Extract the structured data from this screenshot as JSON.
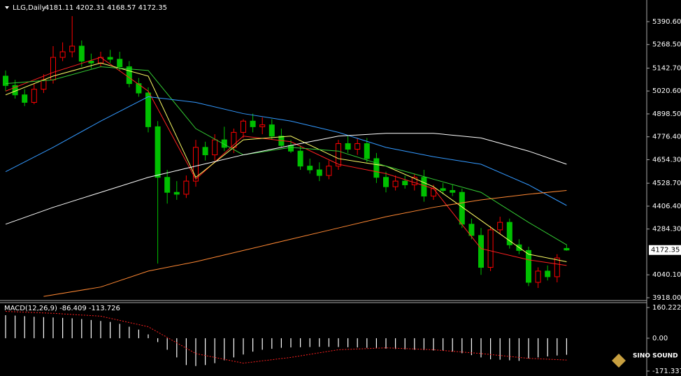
{
  "chart_data": {
    "type": "candlestick",
    "title": "LLG,Daily",
    "ohlc_text": "4181.11 4202.31 4168.57 4172.35",
    "up_color": "#ff0000",
    "down_color": "#00c000",
    "open": [
      5100,
      5050,
      5000,
      4960,
      5030,
      5080,
      5200,
      5230,
      5260,
      5180,
      5170,
      5200,
      5190,
      5150,
      5060,
      5010,
      4830,
      4560,
      4480,
      4470,
      4540,
      4720,
      4680,
      4760,
      4720,
      4800,
      4860,
      4830,
      4840,
      4780,
      4730,
      4700,
      4620,
      4600,
      4570,
      4620,
      4740,
      4710,
      4740,
      4660,
      4560,
      4510,
      4540,
      4520,
      4560,
      4460,
      4500,
      4490,
      4480,
      4310,
      4250,
      4080,
      4280,
      4320,
      4200,
      4170,
      4000,
      4060,
      4030,
      4181.11
    ],
    "high": [
      5130,
      5080,
      5030,
      5060,
      5110,
      5260,
      5280,
      5420,
      5290,
      5220,
      5230,
      5240,
      5230,
      5180,
      5090,
      5040,
      4860,
      4600,
      4540,
      4570,
      4760,
      4750,
      4790,
      4830,
      4820,
      4870,
      4900,
      4880,
      4870,
      4820,
      4760,
      4730,
      4660,
      4640,
      4650,
      4760,
      4780,
      4770,
      4770,
      4690,
      4590,
      4570,
      4570,
      4580,
      4600,
      4520,
      4530,
      4520,
      4500,
      4340,
      4290,
      4300,
      4350,
      4340,
      4230,
      4190,
      4080,
      4090,
      4150,
      4202.31
    ],
    "low": [
      5020,
      4980,
      4940,
      4950,
      5010,
      5060,
      5180,
      5200,
      5150,
      5140,
      5150,
      5170,
      5130,
      5040,
      4990,
      4800,
      4100,
      4420,
      4440,
      4450,
      4510,
      4650,
      4650,
      4700,
      4690,
      4770,
      4800,
      4790,
      4760,
      4720,
      4690,
      4600,
      4580,
      4540,
      4550,
      4600,
      4690,
      4680,
      4640,
      4530,
      4480,
      4490,
      4500,
      4490,
      4430,
      4440,
      4470,
      4460,
      4290,
      4230,
      4040,
      4060,
      4260,
      4180,
      4150,
      3980,
      3970,
      4010,
      4000,
      4168.57
    ],
    "close": [
      5050,
      5000,
      4960,
      5030,
      5080,
      5200,
      5230,
      5260,
      5180,
      5170,
      5200,
      5190,
      5150,
      5060,
      5010,
      4830,
      4560,
      4480,
      4470,
      4540,
      4720,
      4680,
      4760,
      4720,
      4800,
      4860,
      4830,
      4840,
      4780,
      4730,
      4700,
      4620,
      4600,
      4570,
      4620,
      4740,
      4710,
      4740,
      4660,
      4560,
      4510,
      4540,
      4520,
      4560,
      4460,
      4500,
      4490,
      4480,
      4310,
      4250,
      4080,
      4280,
      4320,
      4200,
      4170,
      4000,
      4060,
      4030,
      4130,
      4172.35
    ],
    "ylim": [
      3903,
      5506
    ],
    "yticks": [
      {
        "value": 5390.6,
        "label": "5390.60"
      },
      {
        "value": 5268.5,
        "label": "5268.50"
      },
      {
        "value": 5142.7,
        "label": "5142.70"
      },
      {
        "value": 5020.6,
        "label": "5020.60"
      },
      {
        "value": 4898.5,
        "label": "4898.50"
      },
      {
        "value": 4776.4,
        "label": "4776.40"
      },
      {
        "value": 4654.3,
        "label": "4654.30"
      },
      {
        "value": 4528.7,
        "label": "4528.70"
      },
      {
        "value": 4406.4,
        "label": "4406.40"
      },
      {
        "value": 4284.3,
        "label": "4284.30"
      },
      {
        "value": 4040.1,
        "label": "4040.10"
      },
      {
        "value": 3918,
        "label": "3918.00"
      }
    ],
    "current_price": 4172.35,
    "series": [
      {
        "color": "#ff2020",
        "x": [
          0,
          5,
          10,
          15,
          20,
          25,
          30,
          35,
          40,
          45,
          50,
          55,
          59
        ],
        "values": [
          5020,
          5120,
          5200,
          5020,
          4550,
          4780,
          4750,
          4630,
          4580,
          4500,
          4180,
          4120,
          4090
        ]
      },
      {
        "color": "#ffff66",
        "x": [
          0,
          5,
          10,
          15,
          20,
          25,
          30,
          35,
          40,
          45,
          50,
          55,
          59
        ],
        "values": [
          5000,
          5100,
          5170,
          5100,
          4560,
          4760,
          4780,
          4660,
          4620,
          4510,
          4330,
          4150,
          4110
        ]
      },
      {
        "color": "#33cc33",
        "x": [
          0,
          5,
          10,
          15,
          20,
          25,
          30,
          35,
          40,
          45,
          50,
          55,
          59
        ],
        "values": [
          5060,
          5080,
          5150,
          5130,
          4820,
          4680,
          4720,
          4700,
          4620,
          4550,
          4480,
          4320,
          4200
        ]
      },
      {
        "color": "#3399ff",
        "x": [
          0,
          5,
          10,
          15,
          20,
          25,
          30,
          35,
          40,
          45,
          50,
          55,
          59
        ],
        "values": [
          4590,
          4720,
          4860,
          4990,
          4960,
          4900,
          4860,
          4800,
          4720,
          4670,
          4630,
          4520,
          4410
        ]
      },
      {
        "color": "#ffffff",
        "x": [
          0,
          5,
          10,
          15,
          20,
          25,
          30,
          35,
          40,
          45,
          50,
          55,
          59
        ],
        "values": [
          4310,
          4400,
          4480,
          4560,
          4620,
          4680,
          4730,
          4780,
          4795,
          4795,
          4770,
          4700,
          4630
        ]
      },
      {
        "color": "#ff8833",
        "x": [
          4,
          10,
          15,
          20,
          25,
          30,
          35,
          40,
          45,
          50,
          55,
          59
        ],
        "values": [
          3925,
          3975,
          4060,
          4110,
          4170,
          4230,
          4290,
          4350,
          4400,
          4440,
          4470,
          4490
        ]
      }
    ],
    "macd": {
      "label": "MACD(12,26,9) -86.409 -113.726",
      "histogram": [
        120,
        118,
        115,
        112,
        110,
        108,
        106,
        104,
        100,
        95,
        90,
        85,
        75,
        60,
        45,
        20,
        -20,
        -60,
        -100,
        -140,
        -145,
        -140,
        -130,
        -115,
        -100,
        -85,
        -70,
        -60,
        -55,
        -50,
        -48,
        -47,
        -46,
        -45,
        -45,
        -46,
        -47,
        -48,
        -50,
        -52,
        -54,
        -56,
        -58,
        -60,
        -62,
        -64,
        -66,
        -70,
        -78,
        -88,
        -100,
        -110,
        -112,
        -115,
        -118,
        -105,
        -100,
        -95,
        -90,
        -86.409
      ],
      "signal_x": [
        0,
        5,
        10,
        15,
        20,
        25,
        30,
        35,
        40,
        45,
        50,
        55,
        59
      ],
      "signal": [
        140,
        130,
        115,
        60,
        -80,
        -130,
        -100,
        -60,
        -50,
        -60,
        -80,
        -105,
        -113.726
      ],
      "signal_color": "#ff2020",
      "y2lim": [
        -197,
        185.7
      ],
      "y2ticks": [
        160.222,
        {
          "value": 0,
          "label": "0.00"
        },
        -171.337
      ]
    },
    "logo": "SINO SOUND"
  }
}
